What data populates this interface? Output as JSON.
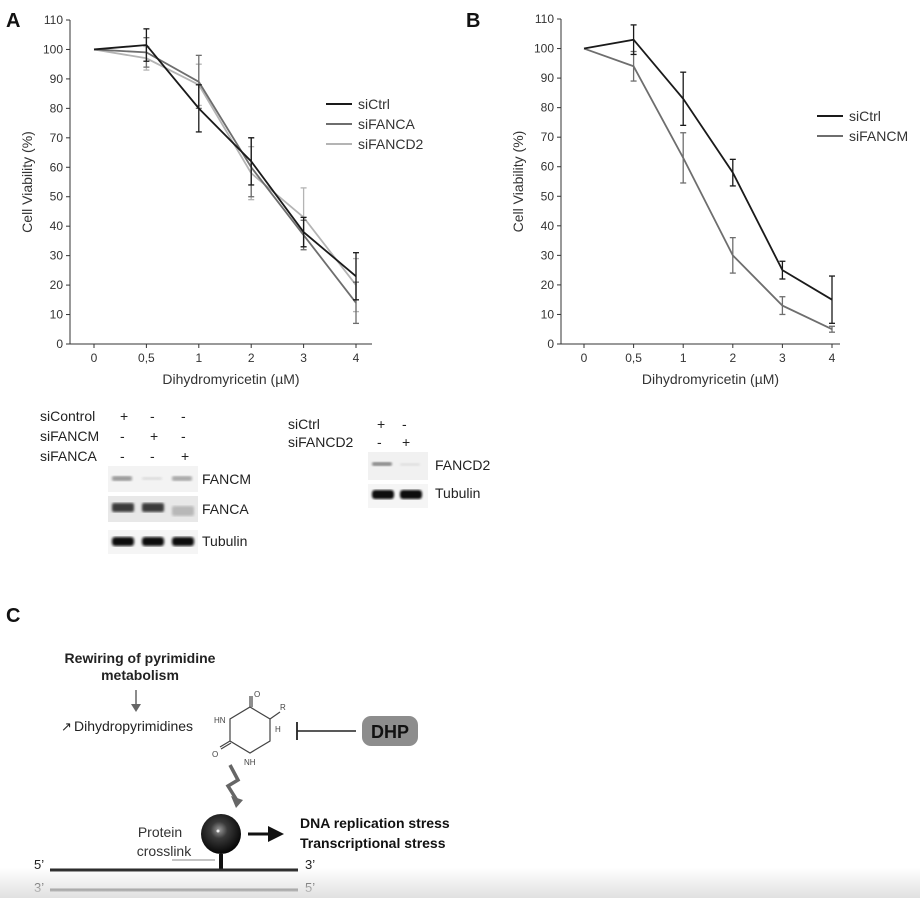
{
  "panels": {
    "a": "A",
    "b": "B",
    "c": "C"
  },
  "chart_data": [
    {
      "type": "line",
      "panel": "A",
      "x": [
        "0",
        "0,5",
        "1",
        "2",
        "3",
        "4"
      ],
      "xlabel": "Dihydromyricetin (µM)",
      "ylabel": "Cell Viability (%)",
      "ylim": [
        0,
        110
      ],
      "yticks": [
        0,
        10,
        20,
        30,
        40,
        50,
        60,
        70,
        80,
        90,
        100,
        110
      ],
      "legend_position": "right",
      "series": [
        {
          "name": "siCtrl",
          "color": "#1a1a1a",
          "values": [
            100,
            101.5,
            80,
            62,
            38,
            23
          ],
          "errors": [
            0,
            5.5,
            8,
            8,
            5,
            8
          ]
        },
        {
          "name": "siFANCA",
          "color": "#6e6e6e",
          "values": [
            100,
            99,
            89,
            60,
            37,
            14
          ],
          "errors": [
            0,
            5,
            9,
            10,
            5,
            7
          ]
        },
        {
          "name": "siFANCD2",
          "color": "#b4b4b4",
          "values": [
            100,
            97,
            88,
            58,
            43,
            20
          ],
          "errors": [
            0,
            4,
            7,
            9,
            10,
            9
          ]
        }
      ]
    },
    {
      "type": "line",
      "panel": "B",
      "x": [
        "0",
        "0,5",
        "1",
        "2",
        "3",
        "4"
      ],
      "xlabel": "Dihydromyricetin (µM)",
      "ylabel": "Cell Viability (%)",
      "ylim": [
        0,
        110
      ],
      "yticks": [
        0,
        10,
        20,
        30,
        40,
        50,
        60,
        70,
        80,
        90,
        100,
        110
      ],
      "legend_position": "right",
      "series": [
        {
          "name": "siCtrl",
          "color": "#1a1a1a",
          "values": [
            100,
            103,
            83,
            58,
            25,
            15
          ],
          "errors": [
            0,
            5,
            9,
            4.5,
            3,
            8
          ]
        },
        {
          "name": "siFANCM",
          "color": "#6e6e6e",
          "values": [
            100,
            94,
            63,
            30,
            13,
            5
          ],
          "errors": [
            0,
            5,
            8.5,
            6,
            3,
            1
          ]
        }
      ]
    }
  ],
  "blots": {
    "left": {
      "conditions": [
        {
          "label": "siControl",
          "marks": [
            "+",
            "-",
            "-"
          ]
        },
        {
          "label": "siFANCM",
          "marks": [
            "-",
            "+",
            "-"
          ]
        },
        {
          "label": "siFANCA",
          "marks": [
            "-",
            "-",
            "+"
          ]
        }
      ],
      "bands": [
        "FANCM",
        "FANCA",
        "Tubulin"
      ]
    },
    "right": {
      "conditions": [
        {
          "label": "siCtrl",
          "marks": [
            "+",
            "-"
          ]
        },
        {
          "label": "siFANCD2",
          "marks": [
            "-",
            "+"
          ]
        }
      ],
      "bands": [
        "FANCD2",
        "Tubulin"
      ]
    }
  },
  "diagram": {
    "title_line1": "Rewiring of pyrimidine",
    "title_line2": "metabolism",
    "up_arrow": "↗",
    "dihydro": "Dihydropyrimidines",
    "dhp": "DHP",
    "protein": "Protein",
    "crosslink": "crosslink",
    "stress1": "DNA replication stress",
    "stress2": "Transcriptional stress",
    "strand_top_left": "5’",
    "strand_top_right": "3’",
    "strand_bottom_left": "3’",
    "strand_bottom_right": "5’",
    "ring_o1": "O",
    "ring_o2": "O",
    "ring_hn": "HN",
    "ring_nh": "NH",
    "ring_r": "R",
    "ring_h": "H"
  }
}
